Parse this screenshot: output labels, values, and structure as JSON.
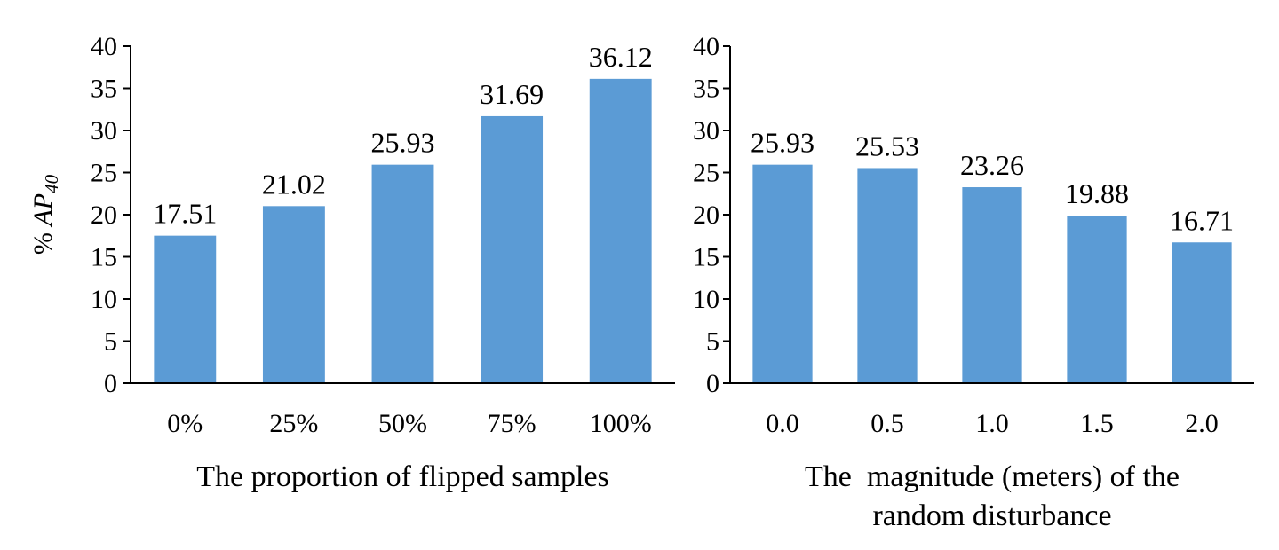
{
  "bar_color": "#5B9BD5",
  "y_label": {
    "prefix": "% ",
    "ap": "AP",
    "subscript": "40"
  },
  "chart_data": [
    {
      "type": "bar",
      "categories": [
        "0%",
        "25%",
        "50%",
        "75%",
        "100%"
      ],
      "values": [
        17.51,
        21.02,
        25.93,
        31.69,
        36.12
      ],
      "data_labels": [
        "17.51",
        "21.02",
        "25.93",
        "31.69",
        "36.12"
      ],
      "title": "",
      "xlabel": [
        "The proportion of flipped samples"
      ],
      "ylabel": "% AP40",
      "ylim": [
        0,
        40
      ],
      "yticks": [
        0,
        5,
        10,
        15,
        20,
        25,
        30,
        35,
        40
      ],
      "grid": false
    },
    {
      "type": "bar",
      "categories": [
        "0.0",
        "0.5",
        "1.0",
        "1.5",
        "2.0"
      ],
      "values": [
        25.93,
        25.53,
        23.26,
        19.88,
        16.71
      ],
      "data_labels": [
        "25.93",
        "25.53",
        "23.26",
        "19.88",
        "16.71"
      ],
      "title": "",
      "xlabel": [
        "The  magnitude (meters) of the",
        "random disturbance"
      ],
      "ylabel": "",
      "ylim": [
        0,
        40
      ],
      "yticks": [
        0,
        5,
        10,
        15,
        20,
        25,
        30,
        35,
        40
      ],
      "grid": false
    }
  ]
}
